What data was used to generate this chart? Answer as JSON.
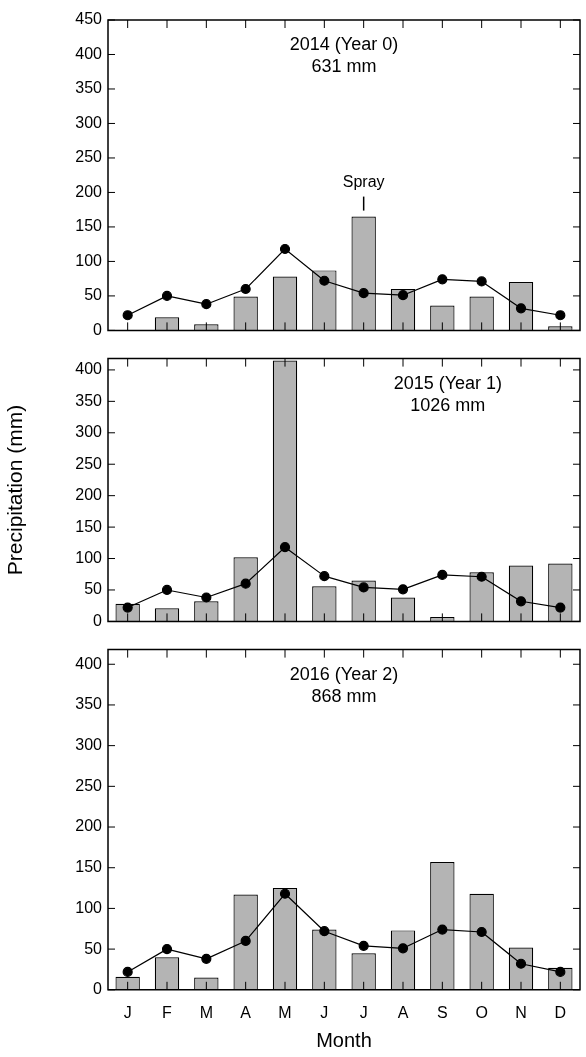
{
  "chart_data": [
    {
      "type": "bar",
      "title": "2014 (Year 0)",
      "subtitle": "631 mm",
      "categories": [
        null,
        null,
        null,
        null,
        null,
        null,
        null,
        null,
        null,
        null,
        null,
        null
      ],
      "marker": "circle",
      "tick_labels": "y",
      "ylim": [
        0,
        450
      ],
      "yticks": [
        0,
        50,
        100,
        150,
        200,
        250,
        300,
        350,
        400,
        450
      ],
      "series": [
        {
          "color": "#b4b4b4",
          "values": [
            0,
            19,
            9,
            49,
            78,
            87,
            165,
            60,
            36,
            49,
            70,
            6
          ]
        },
        {
          "type": "line",
          "color": "#000000",
          "values": [
            22,
            50,
            38,
            60,
            118,
            72,
            54,
            51,
            74,
            71,
            32,
            22
          ]
        }
      ],
      "annotations": [
        "Spray"
      ]
    },
    {
      "type": "bar",
      "title": "2015 (Year 1)",
      "subtitle": "1026 mm",
      "ylabel": "Precipitation (mm)",
      "categories": [
        null,
        null,
        null,
        null,
        null,
        null,
        null,
        null,
        null,
        null,
        null,
        null
      ],
      "marker": "circle",
      "tick_labels": "y",
      "ylim": [
        0,
        418
      ],
      "yticks": [
        0,
        50,
        100,
        150,
        200,
        250,
        300,
        350,
        400
      ],
      "series": [
        {
          "color": "#b4b4b4",
          "values": [
            28,
            21,
            32,
            102,
            415,
            56,
            65,
            38,
            7,
            78,
            89,
            92
          ]
        },
        {
          "type": "line",
          "color": "#000000",
          "values": [
            22,
            50,
            38,
            60,
            118,
            72,
            54,
            51,
            74,
            71,
            32,
            22
          ]
        }
      ]
    },
    {
      "type": "bar",
      "title": "2016 (Year 2)",
      "subtitle": "868 mm",
      "xlabel": "Month",
      "categories": [
        "J",
        "F",
        "M",
        "A",
        "M",
        "J",
        "J",
        "A",
        "S",
        "O",
        "N",
        "D"
      ],
      "marker": "circle",
      "ylim": [
        0,
        418
      ],
      "yticks": [
        0,
        50,
        100,
        150,
        200,
        250,
        300,
        350,
        400
      ],
      "series": [
        {
          "color": "#b4b4b4",
          "values": [
            16,
            40,
            15,
            117,
            125,
            74,
            45,
            73,
            157,
            118,
            52,
            27
          ]
        },
        {
          "type": "line",
          "color": "#000000",
          "values": [
            22,
            50,
            38,
            60,
            118,
            72,
            54,
            51,
            74,
            71,
            32,
            22
          ]
        }
      ]
    }
  ]
}
